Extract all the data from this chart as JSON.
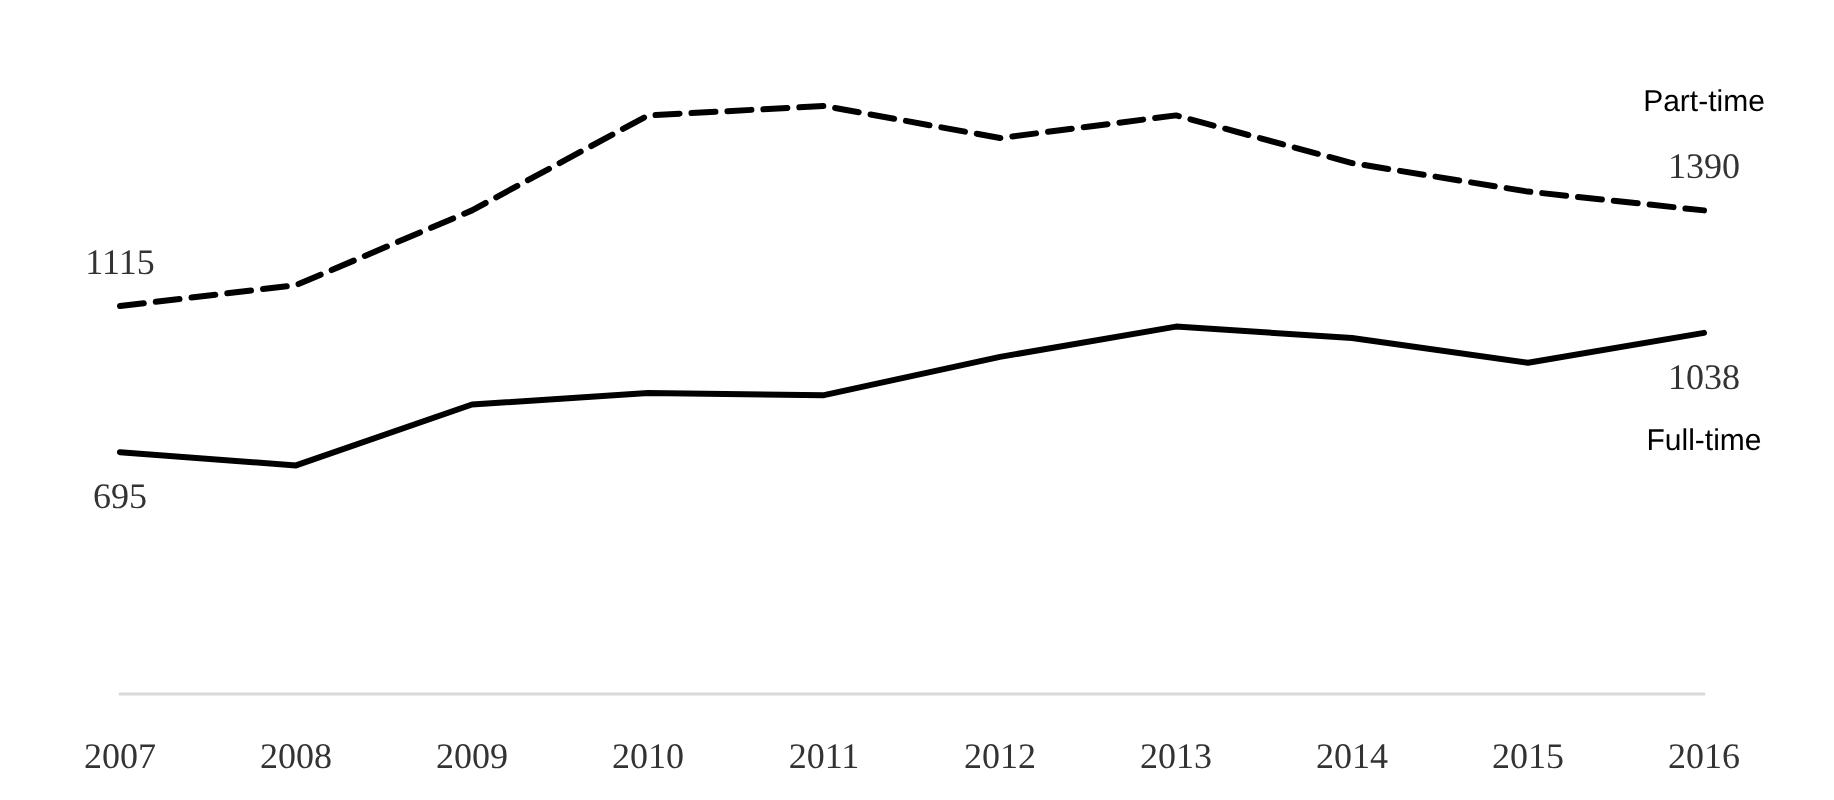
{
  "chart_data": {
    "type": "line",
    "categories": [
      "2007",
      "2008",
      "2009",
      "2010",
      "2011",
      "2012",
      "2013",
      "2014",
      "2015",
      "2016"
    ],
    "series": [
      {
        "name": "Part-time",
        "color": "#000000",
        "line_style": "dashed",
        "values": [
          1115,
          1175,
          1390,
          1663,
          1690,
          1598,
          1663,
          1526,
          1444,
          1390
        ],
        "value_labels": [
          "1115",
          null,
          null,
          null,
          null,
          null,
          null,
          null,
          null,
          "1390"
        ]
      },
      {
        "name": "Full-time",
        "color": "#000000",
        "line_style": "solid",
        "values": [
          695,
          657,
          832,
          865,
          859,
          969,
          1056,
          1023,
          952,
          1038
        ],
        "value_labels": [
          "695",
          null,
          null,
          null,
          null,
          null,
          null,
          null,
          null,
          "1038"
        ]
      }
    ],
    "grid": false,
    "legend": false,
    "marker": "none"
  }
}
